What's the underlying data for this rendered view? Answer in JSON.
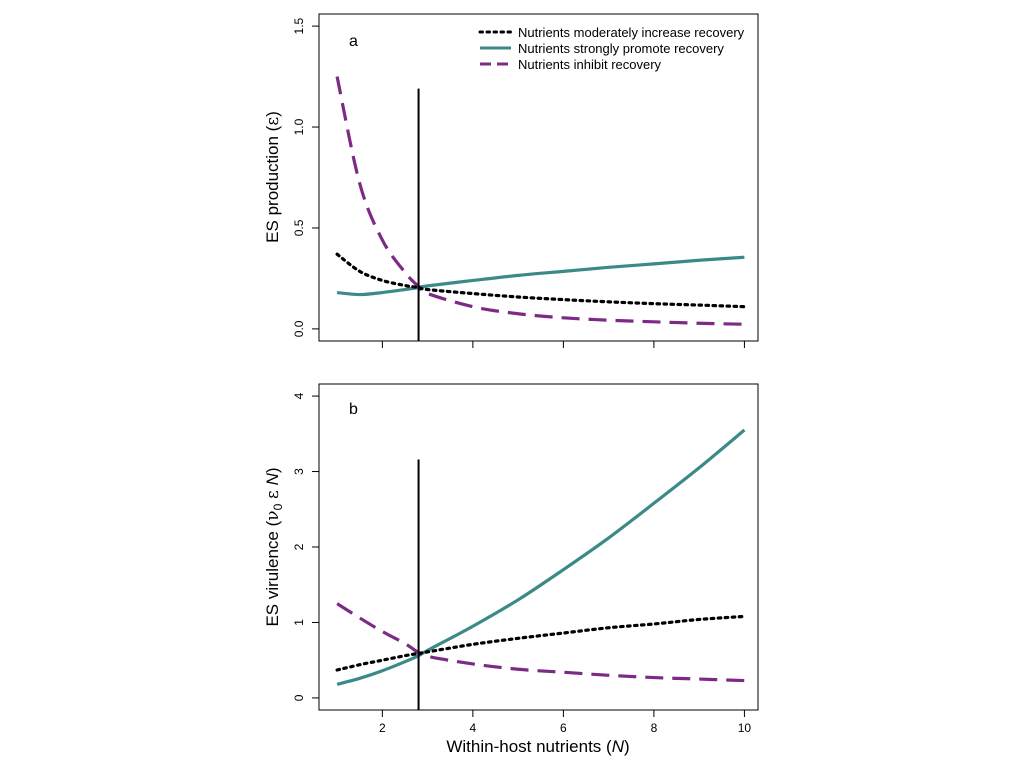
{
  "figure": {
    "xlabel": "Within-host nutrients",
    "xlabel_var": "N"
  },
  "legend": [
    {
      "label": "Nutrients moderately increase recovery",
      "color": "#000000",
      "style": "dotted"
    },
    {
      "label": "Nutrients strongly promote recovery",
      "color": "#3b8a87",
      "style": "solid"
    },
    {
      "label": "Nutrients inhibit recovery",
      "color": "#7d2a86",
      "style": "dashed"
    }
  ],
  "chart_data": [
    {
      "type": "line",
      "panel_label": "a",
      "ylabel": "ES production",
      "ylabel_sym": "ε",
      "xlim": [
        0.6,
        10.3
      ],
      "ylim": [
        -0.06,
        1.56
      ],
      "xticks": [
        2,
        4,
        6,
        8,
        10
      ],
      "xtick_labels": [
        "",
        "",
        "",
        "",
        ""
      ],
      "yticks": [
        0,
        0.5,
        1.0,
        1.5
      ],
      "ytick_labels": [
        "0.0",
        "0.5",
        "1.0",
        "1.5"
      ],
      "vline": {
        "x": 2.8,
        "y_top": 1.19
      },
      "x": [
        1,
        1.5,
        2,
        2.5,
        2.8,
        3,
        4,
        5,
        6,
        7,
        8,
        9,
        10
      ],
      "series": [
        {
          "name": "Nutrients moderately increase recovery",
          "values": [
            0.37,
            0.285,
            0.24,
            0.215,
            0.205,
            0.195,
            0.175,
            0.158,
            0.145,
            0.134,
            0.125,
            0.118,
            0.11
          ]
        },
        {
          "name": "Nutrients strongly promote recovery",
          "values": [
            0.18,
            0.17,
            0.18,
            0.195,
            0.205,
            0.213,
            0.24,
            0.265,
            0.285,
            0.305,
            0.322,
            0.34,
            0.355
          ]
        },
        {
          "name": "Nutrients inhibit recovery",
          "values": [
            1.25,
            0.72,
            0.44,
            0.28,
            0.21,
            0.175,
            0.11,
            0.075,
            0.055,
            0.043,
            0.035,
            0.028,
            0.023
          ]
        }
      ]
    },
    {
      "type": "line",
      "panel_label": "b",
      "ylabel": "ES virulence",
      "ylabel_sym": "ν",
      "ylabel_sub": "0",
      "ylabel_sym2": "ε",
      "ylabel_var": "N",
      "xlim": [
        0.6,
        10.3
      ],
      "ylim": [
        -0.16,
        4.16
      ],
      "xticks": [
        2,
        4,
        6,
        8,
        10
      ],
      "xtick_labels": [
        "2",
        "4",
        "6",
        "8",
        "10"
      ],
      "yticks": [
        0,
        1,
        2,
        3,
        4
      ],
      "ytick_labels": [
        "0",
        "1",
        "2",
        "3",
        "4"
      ],
      "vline": {
        "x": 2.8,
        "y_top": 3.16
      },
      "x": [
        1,
        1.5,
        2,
        2.5,
        2.8,
        3,
        4,
        5,
        6,
        7,
        8,
        9,
        10
      ],
      "series": [
        {
          "name": "Nutrients moderately increase recovery",
          "values": [
            0.37,
            0.44,
            0.5,
            0.56,
            0.59,
            0.61,
            0.71,
            0.79,
            0.86,
            0.93,
            0.98,
            1.04,
            1.08
          ]
        },
        {
          "name": "Nutrients strongly promote recovery",
          "values": [
            0.18,
            0.26,
            0.36,
            0.48,
            0.56,
            0.63,
            0.95,
            1.3,
            1.7,
            2.12,
            2.58,
            3.05,
            3.55
          ]
        },
        {
          "name": "Nutrients inhibit recovery",
          "values": [
            1.25,
            1.06,
            0.88,
            0.72,
            0.6,
            0.55,
            0.45,
            0.38,
            0.34,
            0.3,
            0.27,
            0.25,
            0.23
          ]
        }
      ]
    }
  ]
}
